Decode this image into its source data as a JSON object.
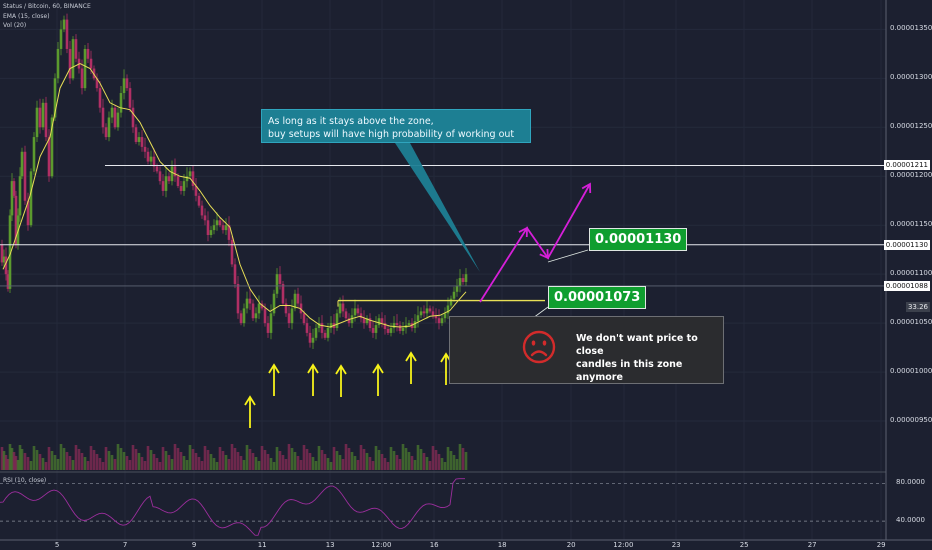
{
  "header": {
    "symbol_line": "Status / Bitcoin, 60, BINANCE",
    "ema_line": "EMA (15, close)",
    "vol_line": "Vol (20)",
    "rsi_line": "RSI (10, close)"
  },
  "annotations": {
    "callout_text": "As long as it stays above the zone,\nbuy setups will have high probability of working out",
    "level_upper_label": "0.00001130",
    "level_lower_label": "0.00001073",
    "zone_note": "We don't want price to close\ncandles in this zone anymore"
  },
  "colors": {
    "background": "#1c2030",
    "up_candle": "#5b9a2e",
    "down_candle": "#b02f64",
    "ema": "#e8df56",
    "callout": "#1d7f93",
    "price_box": "#0f9e2f",
    "arrow_yellow": "#f7f21a",
    "projection": "#d51fd8",
    "rsi_line": "#9b2e9c",
    "sad_face": "#d22b2b"
  },
  "icons": {
    "support_markers": "yellow-up-arrow-icon",
    "zone_note": "sad-face-icon"
  },
  "chart_data": {
    "type": "candlestick",
    "price_axis": {
      "ticks": [
        "0.00001350",
        "0.00001300",
        "0.00001250",
        "0.00001200",
        "0.00001150",
        "0.00001100",
        "0.00001050",
        "0.00001000",
        "0.00000950"
      ],
      "range": [
        9e-06,
        1.38e-05
      ],
      "highlighted_levels": [
        "0.00001211",
        "0.00001130",
        "0.00001088"
      ],
      "indicator_readout": "33.26"
    },
    "rsi_axis": {
      "ticks": [
        "80.0000",
        "40.0000"
      ]
    },
    "time_axis": {
      "ticks": [
        "5",
        "7",
        "9",
        "11",
        "13",
        "12:00",
        "16",
        "18",
        "20",
        "12:00",
        "23",
        "25",
        "27",
        "29"
      ]
    },
    "horizontal_levels": [
      {
        "price": 1.211e-05,
        "label": "0.00001211"
      },
      {
        "price": 1.13e-05,
        "label": "0.00001130"
      },
      {
        "price": 1.088e-05,
        "label": "0.00001088"
      }
    ],
    "zone_top": 1.073e-05,
    "price_path": [
      [
        0,
        1.13e-05
      ],
      [
        2,
        1.112e-05
      ],
      [
        4,
        1.118e-05
      ],
      [
        6,
        1.1e-05
      ],
      [
        8,
        1.085e-05
      ],
      [
        10,
        1.16e-05
      ],
      [
        12,
        1.195e-05
      ],
      [
        14,
        1.18e-05
      ],
      [
        16,
        1.13e-05
      ],
      [
        18,
        1.16e-05
      ],
      [
        20,
        1.2e-05
      ],
      [
        22,
        1.225e-05
      ],
      [
        25,
        1.175e-05
      ],
      [
        28,
        1.15e-05
      ],
      [
        31,
        1.205e-05
      ],
      [
        34,
        1.24e-05
      ],
      [
        37,
        1.27e-05
      ],
      [
        40,
        1.25e-05
      ],
      [
        43,
        1.275e-05
      ],
      [
        46,
        1.24e-05
      ],
      [
        49,
        1.2e-05
      ],
      [
        52,
        1.26e-05
      ],
      [
        55,
        1.3e-05
      ],
      [
        58,
        1.33e-05
      ],
      [
        61,
        1.35e-05
      ],
      [
        64,
        1.36e-05
      ],
      [
        67,
        1.33e-05
      ],
      [
        70,
        1.3e-05
      ],
      [
        73,
        1.34e-05
      ],
      [
        76,
        1.32e-05
      ],
      [
        79,
        1.31e-05
      ],
      [
        82,
        1.29e-05
      ],
      [
        85,
        1.33e-05
      ],
      [
        88,
        1.32e-05
      ],
      [
        91,
        1.31e-05
      ],
      [
        94,
        1.3e-05
      ],
      [
        97,
        1.29e-05
      ],
      [
        100,
        1.27e-05
      ],
      [
        103,
        1.25e-05
      ],
      [
        106,
        1.24e-05
      ],
      [
        109,
        1.26e-05
      ],
      [
        112,
        1.27e-05
      ],
      [
        115,
        1.25e-05
      ],
      [
        118,
        1.265e-05
      ],
      [
        121,
        1.285e-05
      ],
      [
        124,
        1.3e-05
      ],
      [
        127,
        1.29e-05
      ],
      [
        130,
        1.27e-05
      ],
      [
        133,
        1.25e-05
      ],
      [
        136,
        1.235e-05
      ],
      [
        139,
        1.24e-05
      ],
      [
        142,
        1.23e-05
      ],
      [
        145,
        1.225e-05
      ],
      [
        148,
        1.215e-05
      ],
      [
        151,
        1.22e-05
      ],
      [
        154,
        1.21e-05
      ],
      [
        157,
        1.205e-05
      ],
      [
        160,
        1.195e-05
      ],
      [
        163,
        1.185e-05
      ],
      [
        166,
        1.2e-05
      ],
      [
        169,
        1.195e-05
      ],
      [
        172,
        1.21e-05
      ],
      [
        175,
        1.2e-05
      ],
      [
        178,
        1.19e-05
      ],
      [
        181,
        1.185e-05
      ],
      [
        184,
        1.195e-05
      ],
      [
        187,
        1.2e-05
      ],
      [
        190,
        1.205e-05
      ],
      [
        193,
        1.19e-05
      ],
      [
        196,
        1.18e-05
      ],
      [
        199,
        1.17e-05
      ],
      [
        202,
        1.16e-05
      ],
      [
        205,
        1.155e-05
      ],
      [
        208,
        1.14e-05
      ],
      [
        211,
        1.145e-05
      ],
      [
        214,
        1.15e-05
      ],
      [
        217,
        1.155e-05
      ],
      [
        220,
        1.15e-05
      ],
      [
        223,
        1.145e-05
      ],
      [
        226,
        1.15e-05
      ],
      [
        229,
        1.135e-05
      ],
      [
        232,
        1.11e-05
      ],
      [
        235,
        1.09e-05
      ],
      [
        238,
        1.06e-05
      ],
      [
        241,
        1.05e-05
      ],
      [
        244,
        1.065e-05
      ],
      [
        247,
        1.075e-05
      ],
      [
        250,
        1.07e-05
      ],
      [
        253,
        1.055e-05
      ],
      [
        256,
        1.06e-05
      ],
      [
        259,
        1.07e-05
      ],
      [
        262,
        1.065e-05
      ],
      [
        265,
        1.05e-05
      ],
      [
        268,
        1.04e-05
      ],
      [
        271,
        1.06e-05
      ],
      [
        274,
        1.08e-05
      ],
      [
        277,
        1.1e-05
      ],
      [
        280,
        1.09e-05
      ],
      [
        283,
        1.07e-05
      ],
      [
        286,
        1.06e-05
      ],
      [
        289,
        1.05e-05
      ],
      [
        292,
        1.065e-05
      ],
      [
        295,
        1.08e-05
      ],
      [
        298,
        1.07e-05
      ],
      [
        301,
        1.06e-05
      ],
      [
        304,
        1.05e-05
      ],
      [
        307,
        1.04e-05
      ],
      [
        310,
        1.03e-05
      ],
      [
        313,
        1.035e-05
      ],
      [
        316,
        1.045e-05
      ],
      [
        319,
        1.05e-05
      ],
      [
        322,
        1.04e-05
      ],
      [
        325,
        1.035e-05
      ],
      [
        328,
        1.045e-05
      ],
      [
        331,
        1.05e-05
      ],
      [
        334,
        1.045e-05
      ],
      [
        337,
        1.06e-05
      ],
      [
        340,
        1.07e-05
      ],
      [
        343,
        1.062e-05
      ],
      [
        346,
        1.055e-05
      ],
      [
        349,
        1.05e-05
      ],
      [
        352,
        1.058e-05
      ],
      [
        355,
        1.065e-05
      ],
      [
        358,
        1.06e-05
      ],
      [
        361,
        1.055e-05
      ],
      [
        364,
        1.05e-05
      ],
      [
        367,
        1.055e-05
      ],
      [
        370,
        1.045e-05
      ],
      [
        373,
        1.04e-05
      ],
      [
        376,
        1.048e-05
      ],
      [
        379,
        1.055e-05
      ],
      [
        382,
        1.05e-05
      ],
      [
        385,
        1.044e-05
      ],
      [
        388,
        1.04e-05
      ],
      [
        391,
        1.045e-05
      ],
      [
        394,
        1.05e-05
      ],
      [
        397,
        1.048e-05
      ],
      [
        400,
        1.042e-05
      ],
      [
        403,
        1.045e-05
      ],
      [
        406,
        1.048e-05
      ],
      [
        409,
        1.05e-05
      ],
      [
        412,
        1.045e-05
      ],
      [
        415,
        1.052e-05
      ],
      [
        418,
        1.058e-05
      ],
      [
        421,
        1.062e-05
      ],
      [
        424,
        1.06e-05
      ],
      [
        427,
        1.065e-05
      ],
      [
        430,
        1.062e-05
      ],
      [
        433,
        1.058e-05
      ],
      [
        436,
        1.055e-05
      ],
      [
        439,
        1.05e-05
      ],
      [
        442,
        1.055e-05
      ],
      [
        445,
        1.06e-05
      ],
      [
        448,
        1.068e-05
      ],
      [
        451,
        1.075e-05
      ],
      [
        454,
        1.082e-05
      ],
      [
        457,
        1.088e-05
      ],
      [
        460,
        1.096e-05
      ],
      [
        463,
        1.092e-05
      ],
      [
        466,
        1.1e-05
      ]
    ],
    "ema_points": [
      [
        3,
        1.105e-05
      ],
      [
        10,
        1.12e-05
      ],
      [
        20,
        1.15e-05
      ],
      [
        30,
        1.18e-05
      ],
      [
        40,
        1.22e-05
      ],
      [
        50,
        1.24e-05
      ],
      [
        60,
        1.29e-05
      ],
      [
        70,
        1.31e-05
      ],
      [
        80,
        1.315e-05
      ],
      [
        90,
        1.31e-05
      ],
      [
        100,
        1.295e-05
      ],
      [
        110,
        1.275e-05
      ],
      [
        120,
        1.27e-05
      ],
      [
        130,
        1.268e-05
      ],
      [
        140,
        1.255e-05
      ],
      [
        150,
        1.235e-05
      ],
      [
        160,
        1.215e-05
      ],
      [
        170,
        1.205e-05
      ],
      [
        180,
        1.2e-05
      ],
      [
        190,
        1.198e-05
      ],
      [
        200,
        1.185e-05
      ],
      [
        210,
        1.17e-05
      ],
      [
        220,
        1.158e-05
      ],
      [
        230,
        1.148e-05
      ],
      [
        240,
        1.11e-05
      ],
      [
        250,
        1.085e-05
      ],
      [
        260,
        1.07e-05
      ],
      [
        270,
        1.062e-05
      ],
      [
        280,
        1.068e-05
      ],
      [
        290,
        1.068e-05
      ],
      [
        300,
        1.065e-05
      ],
      [
        310,
        1.055e-05
      ],
      [
        320,
        1.048e-05
      ],
      [
        330,
        1.046e-05
      ],
      [
        340,
        1.05e-05
      ],
      [
        350,
        1.054e-05
      ],
      [
        360,
        1.057e-05
      ],
      [
        370,
        1.053e-05
      ],
      [
        380,
        1.05e-05
      ],
      [
        390,
        1.047e-05
      ],
      [
        400,
        1.046e-05
      ],
      [
        410,
        1.047e-05
      ],
      [
        420,
        1.052e-05
      ],
      [
        430,
        1.057e-05
      ],
      [
        440,
        1.058e-05
      ],
      [
        450,
        1.063e-05
      ],
      [
        460,
        1.075e-05
      ],
      [
        466,
        1.082e-05
      ]
    ]
  }
}
